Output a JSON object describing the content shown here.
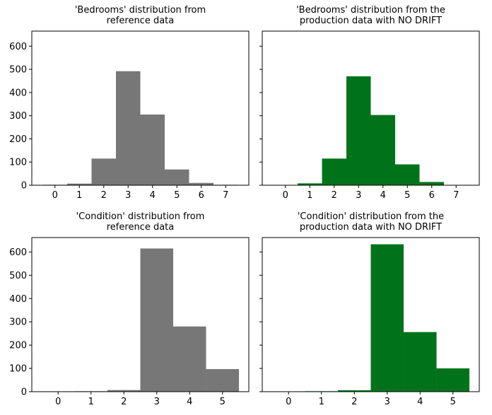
{
  "figure": {
    "background": "#ffffff",
    "shared_y_axis_per_row": true
  },
  "chart_data": [
    {
      "type": "bar",
      "title": "'Bedrooms' distribution from\nreference data",
      "xlabel": "",
      "ylabel": "",
      "color": "#777777",
      "x": [
        0,
        1,
        2,
        3,
        4,
        5,
        6,
        7
      ],
      "values": [
        2,
        7,
        115,
        492,
        305,
        68,
        10,
        2
      ],
      "bar_width": 1,
      "xlim": [
        -0.95,
        7.95
      ],
      "ylim": [
        0,
        665
      ],
      "xticks": [
        "0",
        "1",
        "2",
        "3",
        "4",
        "5",
        "6",
        "7"
      ],
      "yticks": [
        "0",
        "100",
        "200",
        "300",
        "400",
        "500",
        "600"
      ],
      "show_ytick_labels": true,
      "grid": false
    },
    {
      "type": "bar",
      "title": "'Bedrooms' distribution from the\nproduction data with NO DRIFT",
      "xlabel": "",
      "ylabel": "",
      "color": "#00731a",
      "x": [
        0,
        1,
        2,
        3,
        4,
        5,
        6,
        7
      ],
      "values": [
        0,
        8,
        115,
        470,
        303,
        90,
        14,
        1
      ],
      "bar_width": 1,
      "xlim": [
        -0.95,
        7.95
      ],
      "ylim": [
        0,
        665
      ],
      "xticks": [
        "0",
        "1",
        "2",
        "3",
        "4",
        "5",
        "6",
        "7"
      ],
      "yticks": [
        "0",
        "100",
        "200",
        "300",
        "400",
        "500",
        "600"
      ],
      "show_ytick_labels": false,
      "grid": false
    },
    {
      "type": "bar",
      "title": "'Condition' distribution from\nreference data",
      "xlabel": "",
      "ylabel": "",
      "color": "#777777",
      "x": [
        0,
        1,
        2,
        3,
        4,
        5
      ],
      "values": [
        0,
        2,
        7,
        615,
        280,
        97
      ],
      "bar_width": 1,
      "xlim": [
        -0.8,
        5.8
      ],
      "ylim": [
        0,
        662
      ],
      "xticks": [
        "0",
        "1",
        "2",
        "3",
        "4",
        "5"
      ],
      "yticks": [
        "0",
        "100",
        "200",
        "300",
        "400",
        "500",
        "600"
      ],
      "show_ytick_labels": true,
      "grid": false
    },
    {
      "type": "bar",
      "title": "'Condition' distribution from the\nproduction data with NO DRIFT",
      "xlabel": "",
      "ylabel": "",
      "color": "#00731a",
      "x": [
        0,
        1,
        2,
        3,
        4,
        5
      ],
      "values": [
        0,
        2,
        6,
        633,
        256,
        100
      ],
      "bar_width": 1,
      "xlim": [
        -0.8,
        5.8
      ],
      "ylim": [
        0,
        662
      ],
      "xticks": [
        "0",
        "1",
        "2",
        "3",
        "4",
        "5"
      ],
      "yticks": [
        "0",
        "100",
        "200",
        "300",
        "400",
        "500",
        "600"
      ],
      "show_ytick_labels": false,
      "grid": false
    }
  ]
}
